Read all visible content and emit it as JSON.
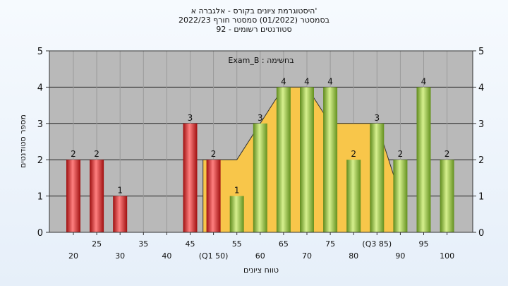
{
  "header": {
    "title_lines": [
      "היסטוגרמת ציונים בקורס - אלגברה א'",
      "בסמסטר  (01/2022)  סמסטר חורף 2022/23",
      "סטודנטים רשומים - 92"
    ]
  },
  "chart_data": {
    "type": "bar",
    "categories": [
      "20",
      "25",
      "30",
      "35",
      "40",
      "45",
      "50",
      "55",
      "60",
      "65",
      "70",
      "75",
      "80",
      "85",
      "90",
      "95",
      "100"
    ],
    "tick_labels": [
      "20",
      "25",
      "30",
      "35",
      "40",
      "45",
      "(Q1 50)",
      "55",
      "60",
      "65",
      "70",
      "75",
      "80",
      "(Q3 85)",
      "90",
      "95",
      "100"
    ],
    "values": [
      2,
      2,
      1,
      0,
      0,
      3,
      2,
      1,
      3,
      4,
      4,
      4,
      2,
      3,
      2,
      4,
      2
    ],
    "bar_groups": [
      "red",
      "red",
      "red",
      "red",
      "red",
      "red",
      "red",
      "green",
      "green",
      "green",
      "green",
      "green",
      "green",
      "green",
      "green",
      "green",
      "green"
    ],
    "box_series": {
      "label": "Exam_B : בחשימה",
      "x": [
        "50",
        "55",
        "60",
        "65",
        "70",
        "75",
        "80",
        "85",
        "90"
      ],
      "y": [
        2,
        2,
        3,
        4,
        4,
        3,
        3,
        3,
        1
      ]
    },
    "xlabel": "טווח ציונים",
    "ylabel": "מספר סטודנטים",
    "ylim": [
      0,
      5
    ],
    "yticks": [
      0,
      1,
      2,
      3,
      4,
      5
    ],
    "grid": true,
    "colors": {
      "red": "#d42a2a",
      "green": "#8fbd3c",
      "box_fill": "#f8c64a",
      "plot_bg": "#b9b9b9"
    }
  }
}
